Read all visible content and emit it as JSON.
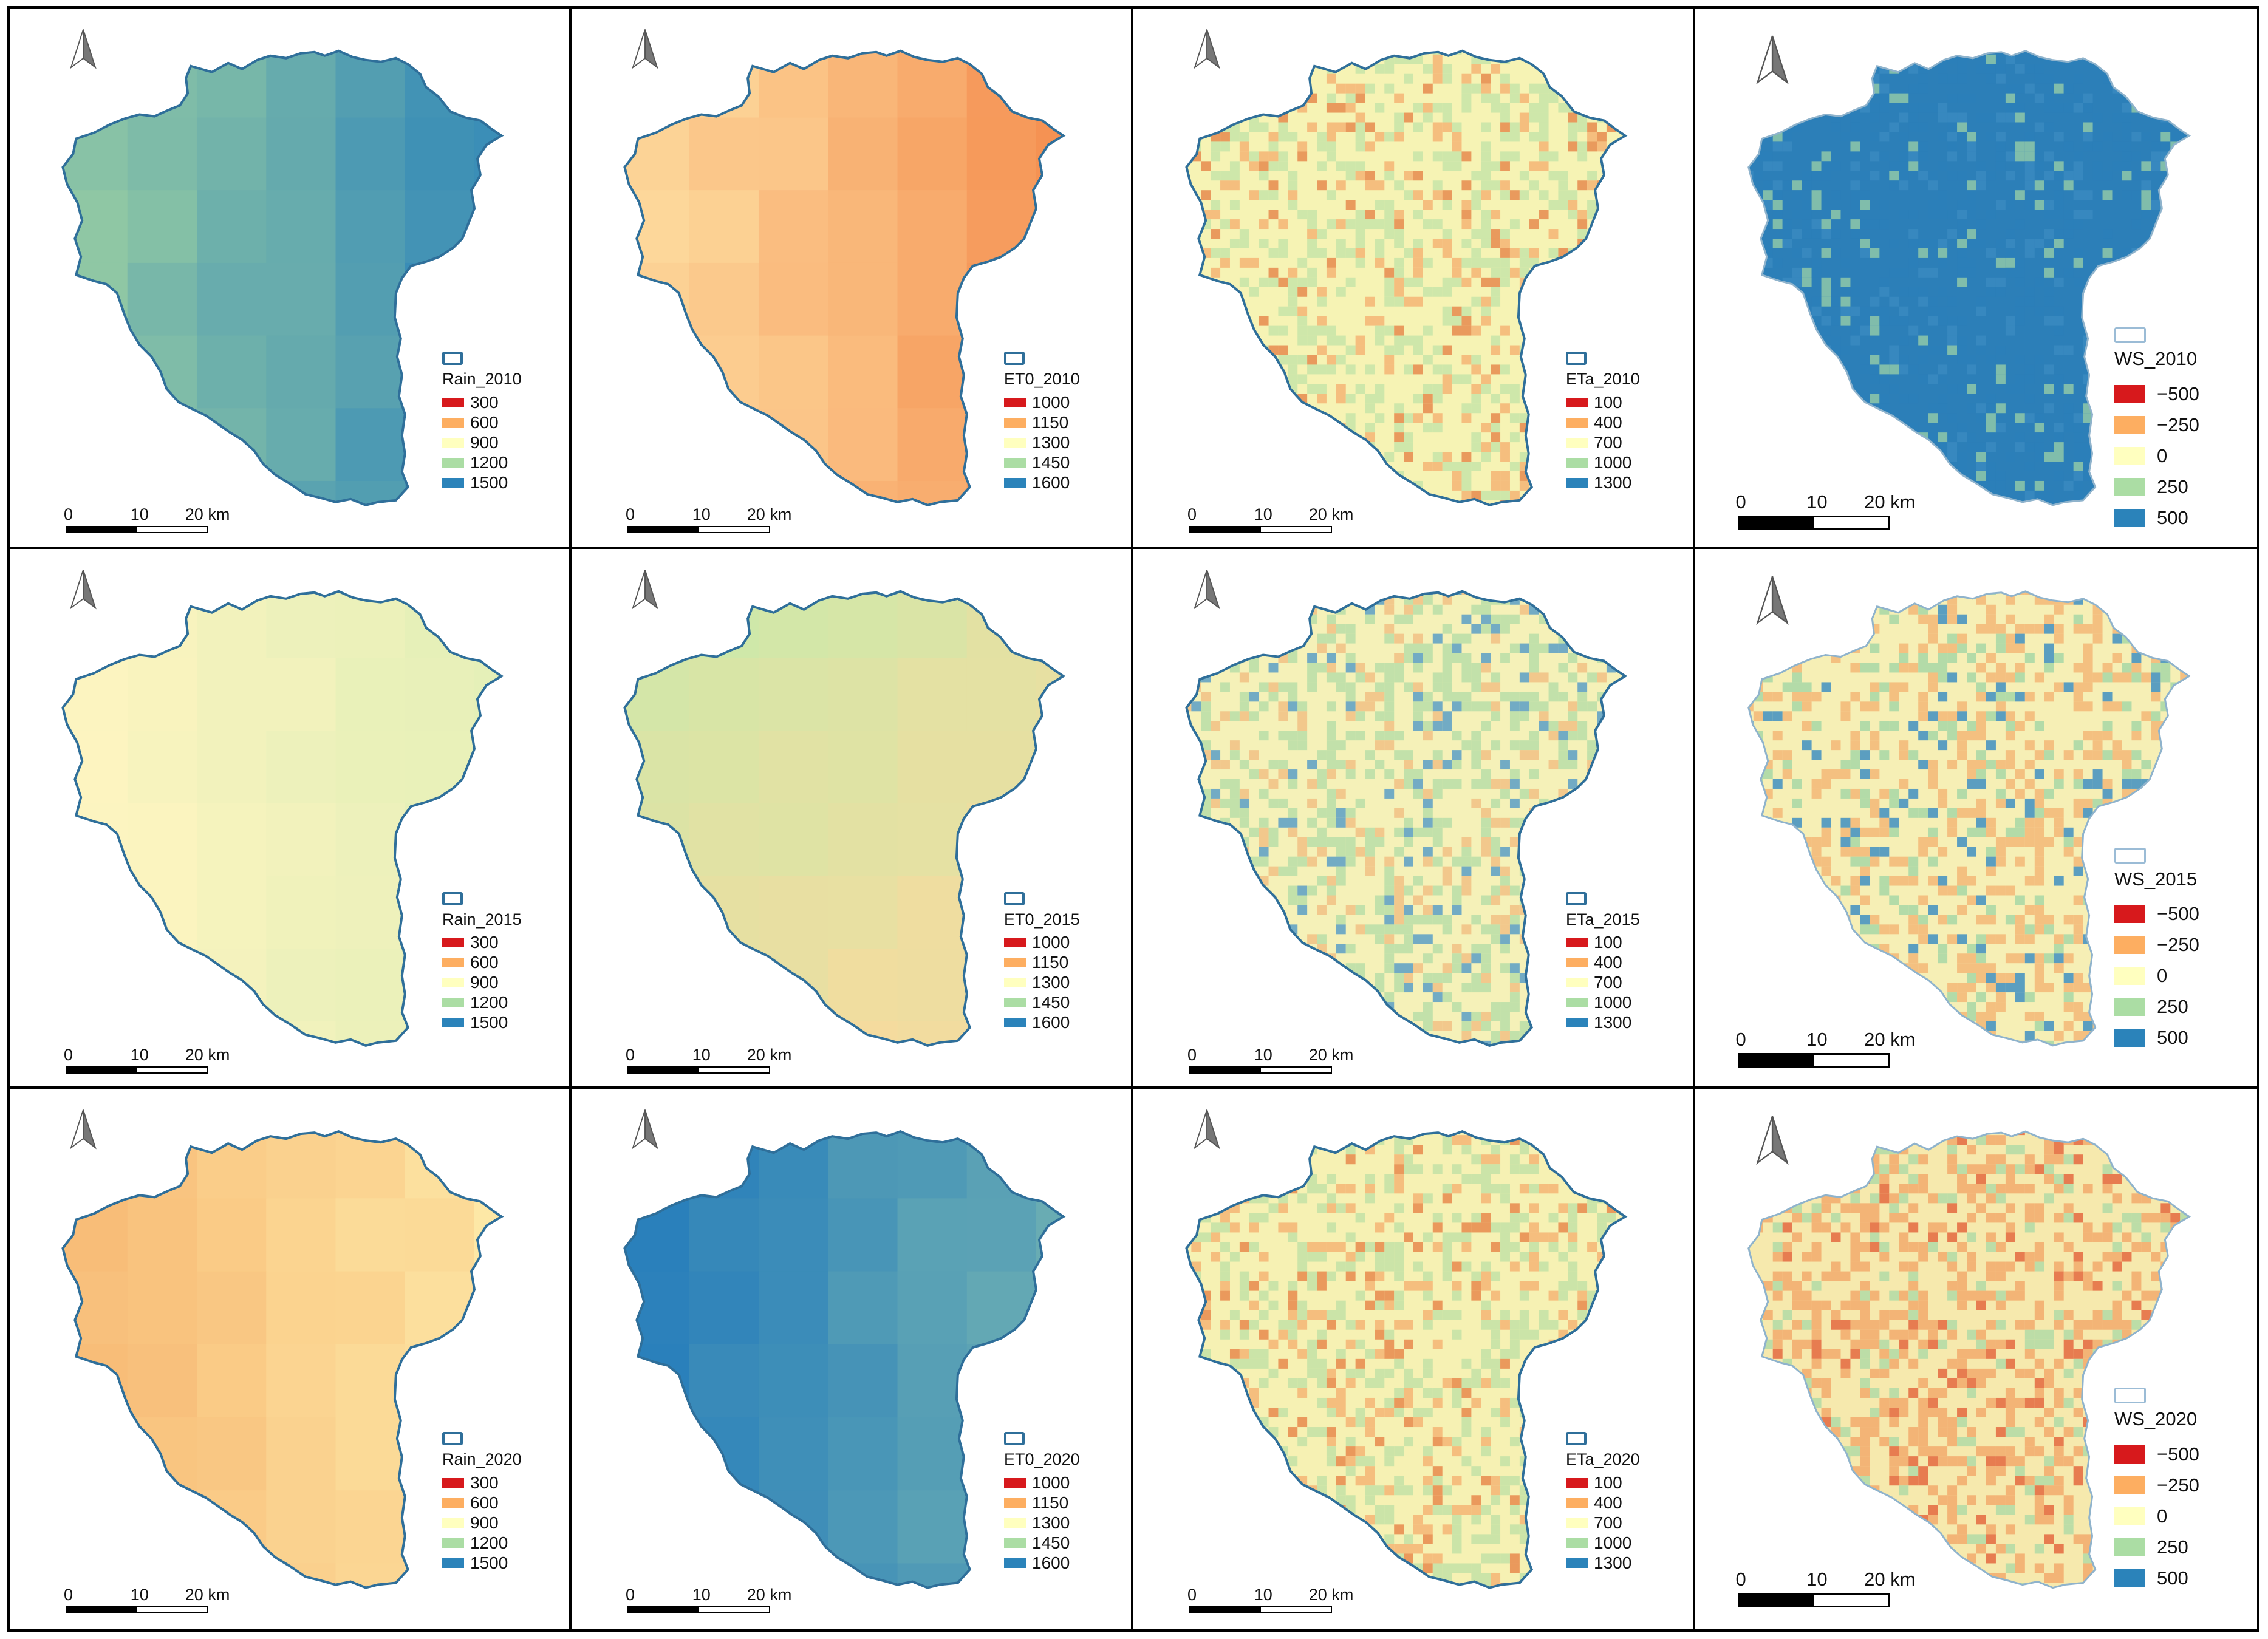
{
  "colors": {
    "c300": "#d7191c",
    "c600": "#fdae61",
    "c900": "#ffffbf",
    "c1200": "#abdda4",
    "c1500": "#2b83ba",
    "outline": "#2f6f9a"
  },
  "scalebar": {
    "labels": [
      "0",
      "10",
      "20 km"
    ]
  },
  "panels": [
    {
      "kind": "grid",
      "title": "Rain_2010",
      "fill": "#7fb9a6",
      "classes": [
        "300",
        "600",
        "900",
        "1200",
        "1500"
      ],
      "gradient": [
        "#8fc7a4",
        "#2b83ba"
      ],
      "dir": "lr"
    },
    {
      "kind": "grid",
      "title": "ET0_2010",
      "fill": "#f9ad6b",
      "classes": [
        "1000",
        "1150",
        "1300",
        "1450",
        "1600"
      ],
      "gradient": [
        "#fdd79a",
        "#f48d4e"
      ],
      "dir": "lr"
    },
    {
      "kind": "noise",
      "title": "ETa_2010",
      "classes": [
        "100",
        "400",
        "700",
        "1000",
        "1300"
      ],
      "mix": [
        "#f6f3b4",
        "#c7e4a8",
        "#f4b474",
        "#e6894e"
      ]
    },
    {
      "kind": "noise",
      "title": "WS_2010",
      "classes": [
        "−500",
        "−250",
        "0",
        "250",
        "500"
      ],
      "mix": [
        "#2c7fb8",
        "#2c7fb8",
        "#3a8ac0",
        "#8fc8a8"
      ],
      "ws": true
    },
    {
      "kind": "grid",
      "title": "Rain_2015",
      "fill": "#fbfbc3",
      "classes": [
        "300",
        "600",
        "900",
        "1200",
        "1500"
      ],
      "gradient": [
        "#fdf4c0",
        "#e0efb6"
      ],
      "dir": "lr"
    },
    {
      "kind": "grid",
      "title": "ET0_2015",
      "fill": "#f4f4bc",
      "classes": [
        "1000",
        "1150",
        "1300",
        "1450",
        "1600"
      ],
      "gradient": [
        "#cfe8a9",
        "#fbd99c"
      ],
      "dir": "diag"
    },
    {
      "kind": "noise",
      "title": "ETa_2015",
      "classes": [
        "100",
        "400",
        "700",
        "1000",
        "1300"
      ],
      "mix": [
        "#f5f1b8",
        "#b9dea7",
        "#f1c184",
        "#5a9fc6"
      ]
    },
    {
      "kind": "noise",
      "title": "WS_2015",
      "classes": [
        "−500",
        "−250",
        "0",
        "250",
        "500"
      ],
      "mix": [
        "#f6efb5",
        "#f3b777",
        "#a7d7a6",
        "#3f8fc2"
      ],
      "ws": true
    },
    {
      "kind": "grid",
      "title": "Rain_2020",
      "fill": "#fcd590",
      "classes": [
        "300",
        "600",
        "900",
        "1200",
        "1500"
      ],
      "gradient": [
        "#f8bd78",
        "#fde8a6"
      ],
      "dir": "lr"
    },
    {
      "kind": "grid",
      "title": "ET0_2020",
      "fill": "#3a8dbf",
      "classes": [
        "1000",
        "1150",
        "1300",
        "1450",
        "1600"
      ],
      "gradient": [
        "#2a80bb",
        "#6fb0b2"
      ],
      "dir": "lr"
    },
    {
      "kind": "noise",
      "title": "ETa_2020",
      "classes": [
        "100",
        "400",
        "700",
        "1000",
        "1300"
      ],
      "mix": [
        "#f6f1b3",
        "#c3e2a6",
        "#f4b574",
        "#e7894c"
      ]
    },
    {
      "kind": "noise",
      "title": "WS_2020",
      "classes": [
        "−500",
        "−250",
        "0",
        "250",
        "500"
      ],
      "mix": [
        "#f6e9ad",
        "#f2aa6c",
        "#b2dba6",
        "#e4683f"
      ],
      "ws": true
    }
  ]
}
